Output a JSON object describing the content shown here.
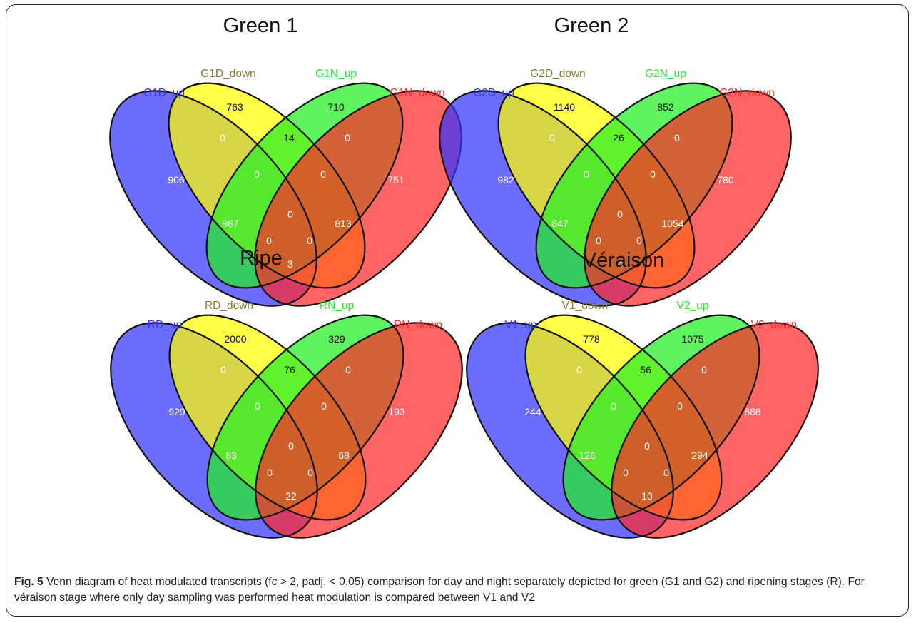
{
  "colors": {
    "set1": "#3333ff",
    "set2": "#ffff00",
    "set3": "#22ee22",
    "set4": "#ff2a2a",
    "label_set2": "#8a7a2a"
  },
  "diagrams": [
    {
      "title": "Green 1",
      "sets": [
        "G1D_up",
        "G1D_down",
        "G1N_up",
        "G1N_down"
      ],
      "regions": {
        "A": "906",
        "B": "763",
        "C": "710",
        "D": "751",
        "AB": "0",
        "BC": "14",
        "CD": "0",
        "ABC": "0",
        "BCD": "0",
        "ABCD": "0",
        "AC": "987",
        "BD": "813",
        "ACD": "0",
        "ABD": "0",
        "AD": "3"
      }
    },
    {
      "title": "Green 2",
      "sets": [
        "G2D_up",
        "G2D_down",
        "G2N_up",
        "G2N_down"
      ],
      "regions": {
        "A": "982",
        "B": "1140",
        "C": "852",
        "D": "780",
        "AB": "0",
        "BC": "26",
        "CD": "0",
        "ABC": "0",
        "BCD": "0",
        "ABCD": "0",
        "AC": "847",
        "BD": "1054",
        "ACD": "0",
        "ABD": "0",
        "AD": "4"
      }
    },
    {
      "title": "Ripe",
      "sets": [
        "RD_up",
        "RD_down",
        "RN_up",
        "RN_down"
      ],
      "regions": {
        "A": "929",
        "B": "2000",
        "C": "329",
        "D": "193",
        "AB": "0",
        "BC": "76",
        "CD": "0",
        "ABC": "0",
        "BCD": "0",
        "ABCD": "0",
        "AC": "83",
        "BD": "68",
        "ACD": "0",
        "ABD": "0",
        "AD": "22"
      }
    },
    {
      "title": "Véraison",
      "sets": [
        "V1_up",
        "V1_down",
        "V2_up",
        "V2_down"
      ],
      "regions": {
        "A": "244",
        "B": "778",
        "C": "1075",
        "D": "688",
        "AB": "0",
        "BC": "56",
        "CD": "0",
        "ABC": "0",
        "BCD": "0",
        "ABCD": "0",
        "AC": "126",
        "BD": "294",
        "ACD": "0",
        "ABD": "0",
        "AD": "10"
      }
    }
  ],
  "caption": {
    "label": "Fig. 5",
    "text": "Venn diagram of heat modulated transcripts (fc > 2, padj. < 0.05) comparison for day and night separately depicted for green (G1 and G2) and ripening stages (R). For véraison stage where only day sampling was performed heat modulation is compared between V1 and V2"
  }
}
